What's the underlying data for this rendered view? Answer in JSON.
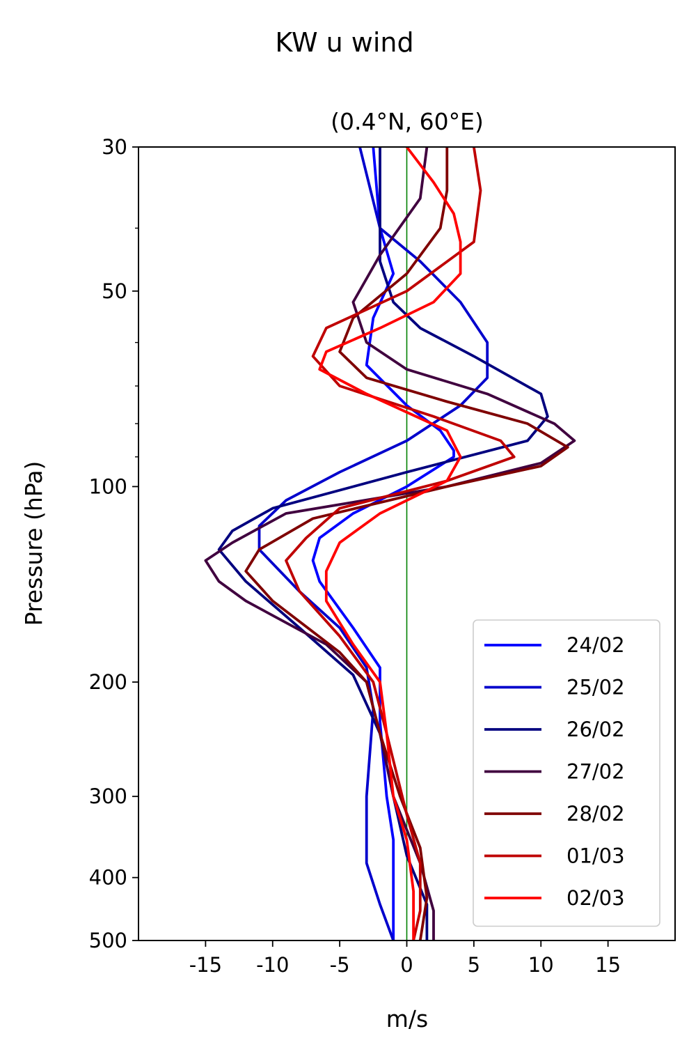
{
  "chart_data": {
    "type": "line",
    "title": "KW u wind",
    "subtitle": "(0.4°N, 60°E)",
    "xlabel": "m/s",
    "ylabel": "Pressure (hPa)",
    "xlim": [
      -20,
      20
    ],
    "ylim": [
      500,
      30
    ],
    "yscale": "log",
    "grid": false,
    "legend_position": "lower-right",
    "x_ticks": [
      -15,
      -10,
      -5,
      0,
      5,
      10,
      15
    ],
    "x_tick_labels": [
      "-15",
      "-10",
      "-5",
      "0",
      "5",
      "10",
      "15"
    ],
    "y_ticks": [
      30,
      50,
      100,
      200,
      300,
      400,
      500
    ],
    "y_tick_labels": [
      "30",
      "50",
      "100",
      "200",
      "300",
      "400",
      "500"
    ],
    "y_minor_ticks": [
      40,
      60,
      70,
      80,
      90
    ],
    "zero_line": {
      "x": 0,
      "color": "#008000"
    },
    "series": [
      {
        "name": "24/02",
        "color": "#0000ff",
        "points": [
          [
            -2.5,
            30
          ],
          [
            -2,
            40
          ],
          [
            -1,
            47
          ],
          [
            -2.5,
            55
          ],
          [
            -3,
            65
          ],
          [
            0,
            75
          ],
          [
            2.5,
            82
          ],
          [
            3.5,
            88
          ],
          [
            3.5,
            90
          ],
          [
            0,
            100
          ],
          [
            -4,
            110
          ],
          [
            -6.5,
            120
          ],
          [
            -7,
            130
          ],
          [
            -6.5,
            140
          ],
          [
            -4,
            165
          ],
          [
            -2,
            190
          ],
          [
            -2,
            230
          ],
          [
            -1.5,
            300
          ],
          [
            -1,
            350
          ],
          [
            -1,
            500
          ]
        ]
      },
      {
        "name": "25/02",
        "color": "#0000cc",
        "points": [
          [
            -3.5,
            30
          ],
          [
            -2,
            40
          ],
          [
            1,
            45
          ],
          [
            4,
            52
          ],
          [
            6,
            60
          ],
          [
            6,
            68
          ],
          [
            4,
            75
          ],
          [
            0,
            85
          ],
          [
            -5,
            95
          ],
          [
            -9,
            105
          ],
          [
            -11,
            115
          ],
          [
            -11,
            125
          ],
          [
            -8,
            145
          ],
          [
            -5,
            165
          ],
          [
            -3,
            190
          ],
          [
            -2.5,
            220
          ],
          [
            -3,
            300
          ],
          [
            -3,
            380
          ],
          [
            -2,
            440
          ],
          [
            -1,
            500
          ]
        ]
      },
      {
        "name": "26/02",
        "color": "#00007f",
        "points": [
          [
            -2,
            30
          ],
          [
            -2,
            38
          ],
          [
            -2,
            45
          ],
          [
            -1,
            52
          ],
          [
            1,
            57
          ],
          [
            5,
            63
          ],
          [
            10,
            72
          ],
          [
            10.5,
            78
          ],
          [
            9,
            85
          ],
          [
            0,
            95
          ],
          [
            -10,
            108
          ],
          [
            -13,
            117
          ],
          [
            -14,
            125
          ],
          [
            -12,
            140
          ],
          [
            -8,
            165
          ],
          [
            -4,
            195
          ],
          [
            -2,
            240
          ],
          [
            -1,
            300
          ],
          [
            0,
            370
          ],
          [
            1.5,
            440
          ],
          [
            1.5,
            500
          ]
        ]
      },
      {
        "name": "27/02",
        "color": "#40003f",
        "points": [
          [
            1.5,
            30
          ],
          [
            1,
            36
          ],
          [
            -2,
            44
          ],
          [
            -4,
            52
          ],
          [
            -3,
            60
          ],
          [
            0,
            66
          ],
          [
            6,
            72
          ],
          [
            11,
            80
          ],
          [
            12.5,
            85
          ],
          [
            10,
            92
          ],
          [
            3,
            100
          ],
          [
            -9,
            110
          ],
          [
            -13,
            122
          ],
          [
            -15,
            130
          ],
          [
            -14,
            140
          ],
          [
            -12,
            150
          ],
          [
            -6,
            175
          ],
          [
            -3,
            200
          ],
          [
            -2,
            240
          ],
          [
            -1,
            300
          ],
          [
            1,
            380
          ],
          [
            2,
            450
          ],
          [
            2,
            500
          ]
        ]
      },
      {
        "name": "28/02",
        "color": "#7f0000",
        "points": [
          [
            3,
            30
          ],
          [
            3,
            35
          ],
          [
            2.5,
            40
          ],
          [
            0,
            47
          ],
          [
            -4,
            55
          ],
          [
            -5,
            62
          ],
          [
            -3,
            68
          ],
          [
            3,
            74
          ],
          [
            9,
            80
          ],
          [
            12,
            87
          ],
          [
            10,
            93
          ],
          [
            3,
            100
          ],
          [
            -7,
            112
          ],
          [
            -11,
            125
          ],
          [
            -12,
            135
          ],
          [
            -10,
            150
          ],
          [
            -5,
            180
          ],
          [
            -3,
            200
          ],
          [
            -2,
            240
          ],
          [
            -0.5,
            300
          ],
          [
            1,
            360
          ],
          [
            1.5,
            430
          ],
          [
            1,
            500
          ]
        ]
      },
      {
        "name": "01/03",
        "color": "#bf0000",
        "points": [
          [
            5,
            30
          ],
          [
            5.5,
            35
          ],
          [
            5,
            42
          ],
          [
            0,
            50
          ],
          [
            -6,
            57
          ],
          [
            -7,
            63
          ],
          [
            -5,
            70
          ],
          [
            2,
            78
          ],
          [
            7,
            85
          ],
          [
            8,
            90
          ],
          [
            3,
            98
          ],
          [
            -5,
            108
          ],
          [
            -7.5,
            120
          ],
          [
            -9,
            130
          ],
          [
            -8,
            145
          ],
          [
            -5,
            170
          ],
          [
            -2.5,
            200
          ],
          [
            -1.5,
            240
          ],
          [
            0,
            320
          ],
          [
            1,
            380
          ],
          [
            1,
            450
          ],
          [
            0.5,
            500
          ]
        ]
      },
      {
        "name": "02/03",
        "color": "#ff0000",
        "points": [
          [
            0,
            30
          ],
          [
            2,
            34
          ],
          [
            3.5,
            38
          ],
          [
            4,
            42
          ],
          [
            4,
            47
          ],
          [
            2,
            52
          ],
          [
            -2,
            57
          ],
          [
            -6,
            62
          ],
          [
            -6.5,
            66
          ],
          [
            -3,
            72
          ],
          [
            3,
            82
          ],
          [
            4,
            90
          ],
          [
            3,
            98
          ],
          [
            -2,
            110
          ],
          [
            -5,
            122
          ],
          [
            -6,
            135
          ],
          [
            -6,
            150
          ],
          [
            -4,
            175
          ],
          [
            -2,
            200
          ],
          [
            -1.5,
            240
          ],
          [
            -1,
            300
          ],
          [
            0,
            350
          ],
          [
            0.5,
            420
          ],
          [
            0.5,
            500
          ]
        ]
      }
    ]
  }
}
